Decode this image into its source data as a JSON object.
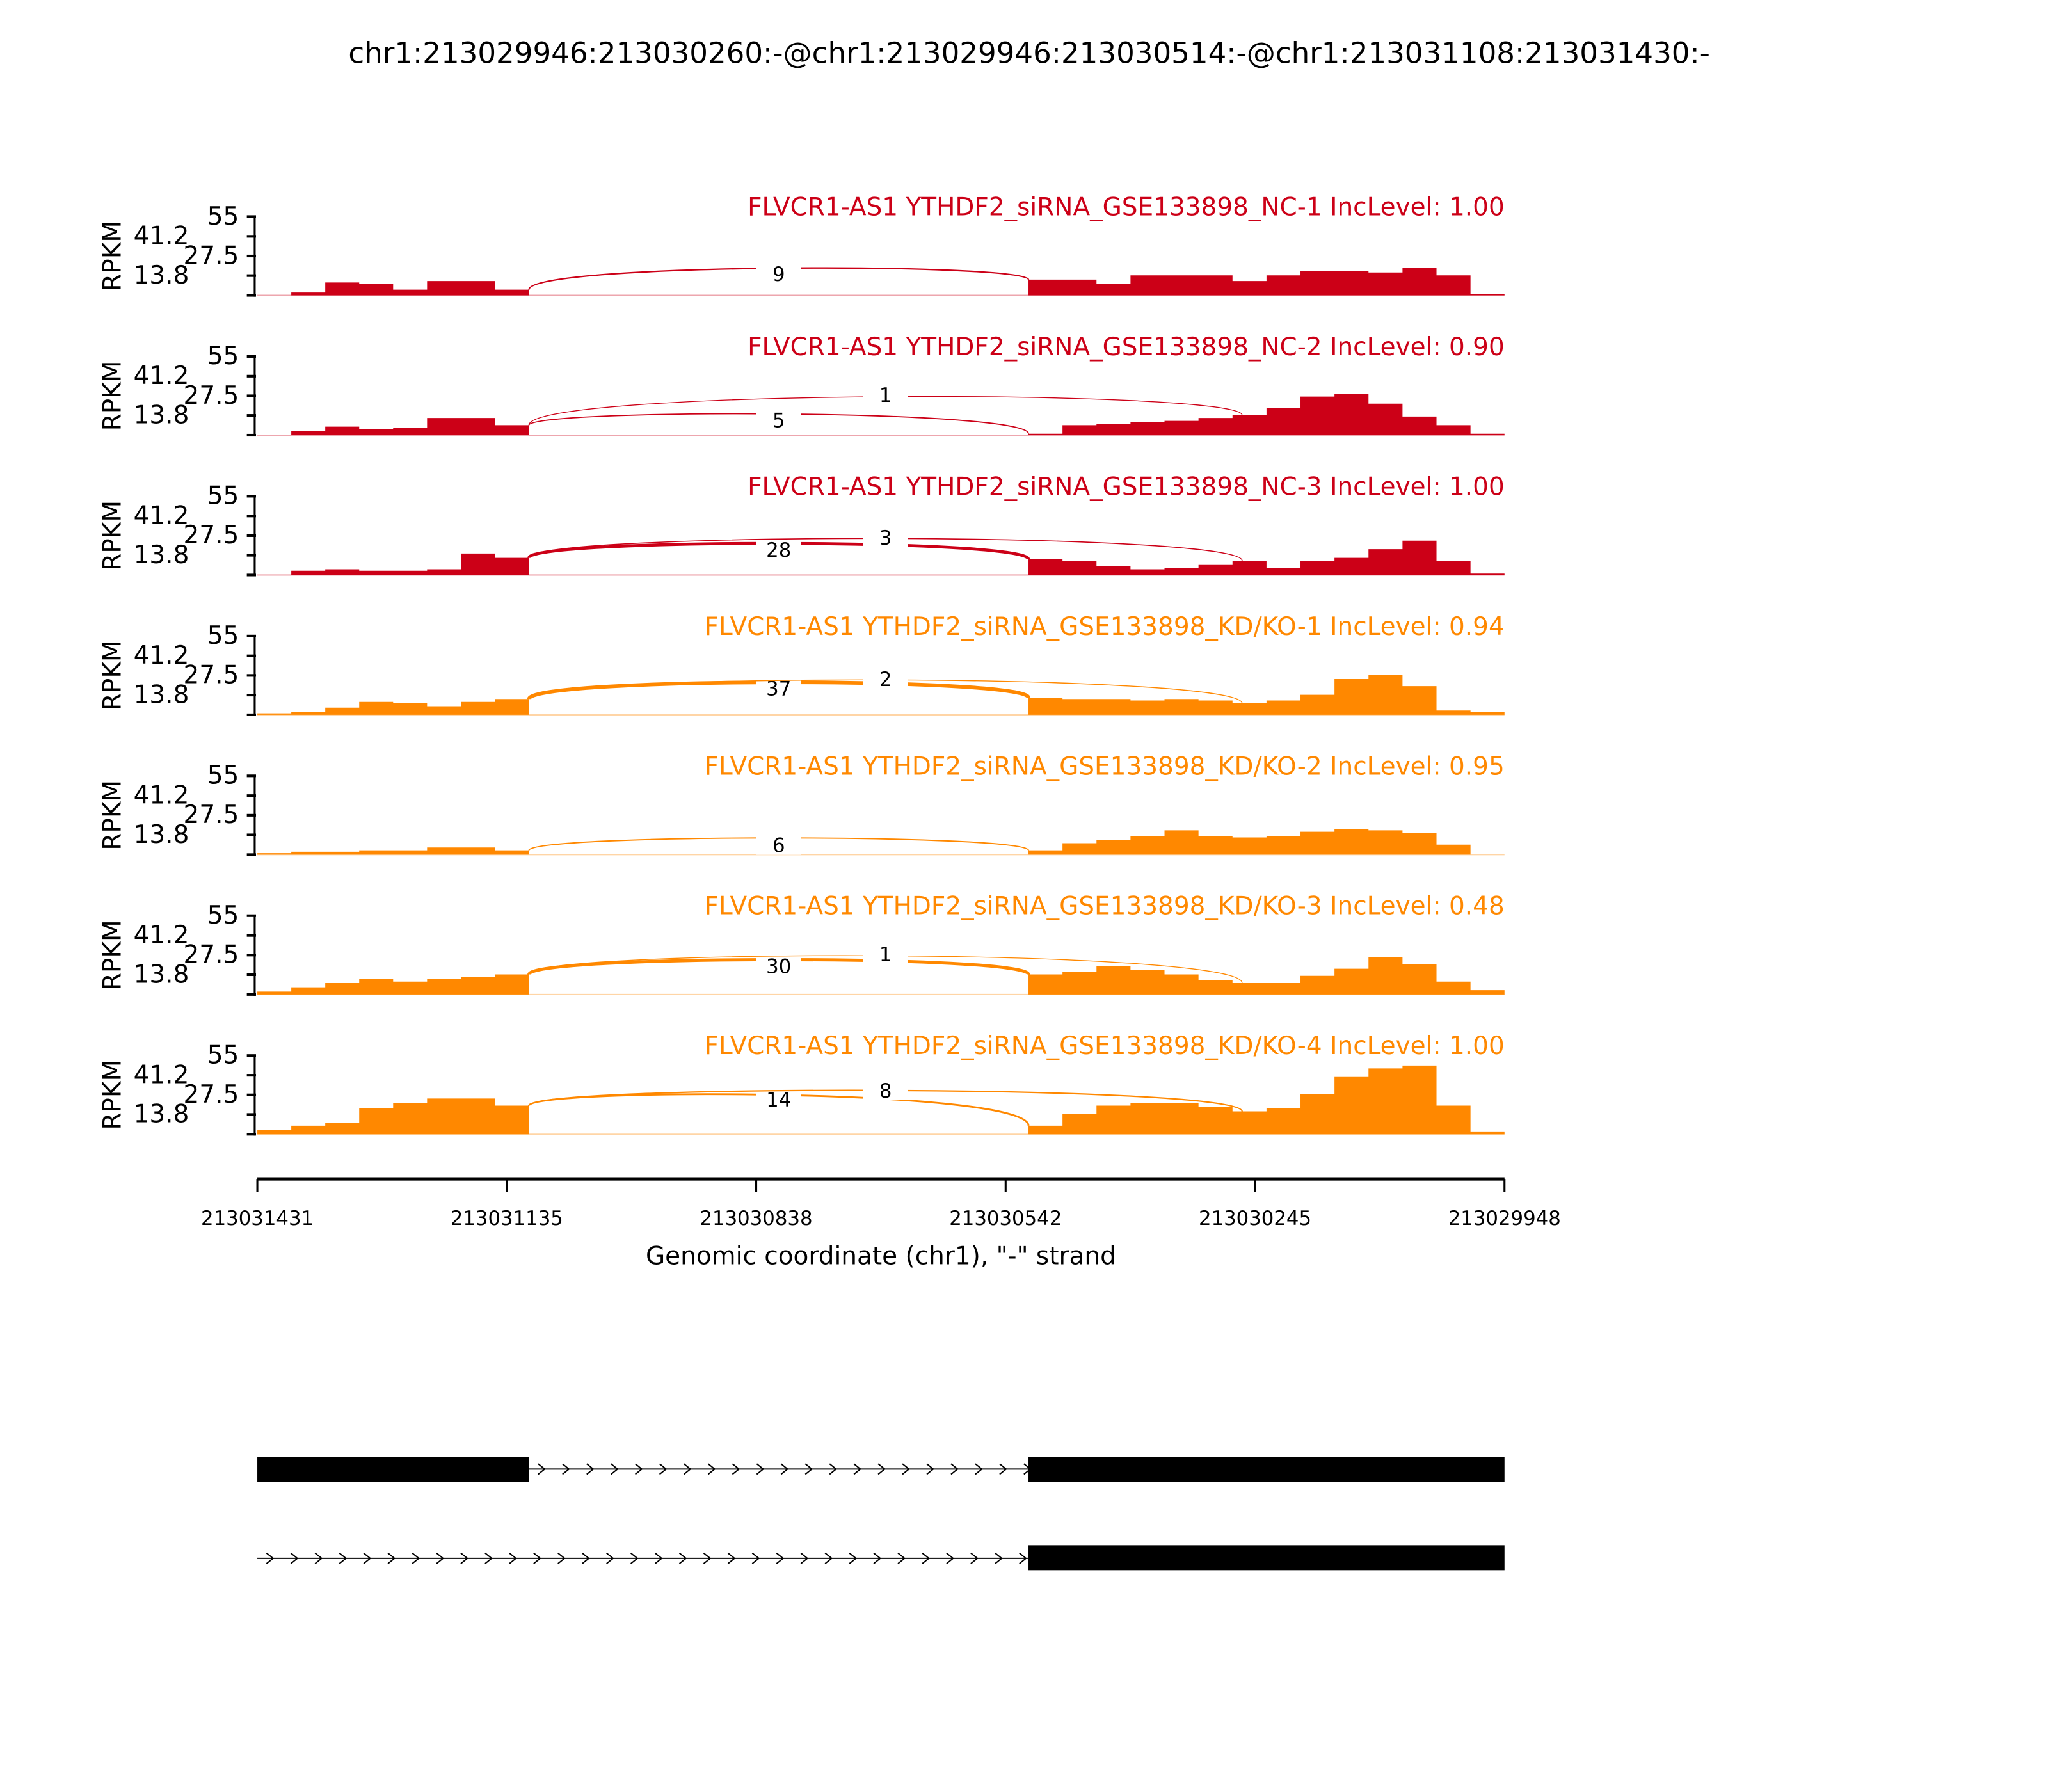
{
  "chart_data": {
    "type": "area",
    "title": "chr1:213029946:213030260:-@chr1:213029946:213030514:-@chr1:213031108:213031430:-",
    "xlabel": "Genomic coordinate (chr1), \"-\" strand",
    "ylabel": "RPKM",
    "xlim": [
      213031431,
      213029948
    ],
    "x_ticks": [
      "213031431",
      "213031135",
      "213030838",
      "213030542",
      "213030245",
      "213029948"
    ],
    "ylim": [
      0,
      55
    ],
    "y_ticks": [
      "13.8",
      "27.5",
      "41.2",
      "55"
    ],
    "exons": [
      [
        213031430,
        213031108
      ],
      [
        213030514,
        213030260
      ],
      [
        213030260,
        213029946
      ]
    ],
    "colors": {
      "NC": "#CC0017",
      "KD": "#FF8800"
    },
    "tracks": [
      {
        "label": "FLVCR1-AS1 YTHDF2_siRNA_GSE133898_NC-1 IncLevel: 1.00",
        "group": "NC",
        "exon1_cov": [
          0,
          2,
          9,
          8,
          4,
          10,
          10,
          4
        ],
        "exon23_cov": [
          11,
          11,
          8,
          14,
          14,
          14,
          10,
          14,
          17,
          17,
          16,
          19,
          14,
          1
        ],
        "junctions": [
          {
            "label": "9",
            "count": 9,
            "type": "inclusion"
          }
        ]
      },
      {
        "label": "FLVCR1-AS1 YTHDF2_siRNA_GSE133898_NC-2 IncLevel: 0.90",
        "group": "NC",
        "exon1_cov": [
          0,
          3,
          6,
          4,
          5,
          12,
          12,
          7
        ],
        "exon23_cov": [
          1,
          7,
          8,
          9,
          10,
          12,
          14,
          19,
          27,
          29,
          22,
          13,
          7,
          1
        ],
        "junctions": [
          {
            "label": "5",
            "count": 5,
            "type": "inclusion"
          },
          {
            "label": "1",
            "count": 1,
            "type": "skipping"
          }
        ]
      },
      {
        "label": "FLVCR1-AS1 YTHDF2_siRNA_GSE133898_NC-3 IncLevel: 1.00",
        "group": "NC",
        "exon1_cov": [
          0,
          3,
          4,
          3,
          3,
          4,
          15,
          12
        ],
        "exon23_cov": [
          11,
          10,
          6,
          4,
          5,
          7,
          10,
          5,
          10,
          12,
          18,
          24,
          10,
          1
        ],
        "junctions": [
          {
            "label": "28",
            "count": 28,
            "type": "inclusion"
          },
          {
            "label": "3",
            "count": 3,
            "type": "skipping"
          }
        ]
      },
      {
        "label": "FLVCR1-AS1 YTHDF2_siRNA_GSE133898_KD/KO-1 IncLevel: 0.94",
        "group": "KD",
        "exon1_cov": [
          1,
          2,
          5,
          9,
          8,
          6,
          9,
          11
        ],
        "exon23_cov": [
          12,
          11,
          11,
          10,
          11,
          10,
          8,
          10,
          14,
          25,
          28,
          20,
          3,
          2
        ],
        "junctions": [
          {
            "label": "37",
            "count": 37,
            "type": "inclusion"
          },
          {
            "label": "2",
            "count": 2,
            "type": "skipping"
          }
        ]
      },
      {
        "label": "FLVCR1-AS1 YTHDF2_siRNA_GSE133898_KD/KO-2 IncLevel: 0.95",
        "group": "KD",
        "exon1_cov": [
          1,
          2,
          2,
          3,
          3,
          5,
          5,
          3
        ],
        "exon23_cov": [
          3,
          8,
          10,
          13,
          17,
          13,
          12,
          13,
          16,
          18,
          17,
          15,
          7,
          0
        ],
        "junctions": [
          {
            "label": "6",
            "count": 6,
            "type": "inclusion"
          }
        ]
      },
      {
        "label": "FLVCR1-AS1 YTHDF2_siRNA_GSE133898_KD/KO-3 IncLevel: 0.48",
        "group": "KD",
        "exon1_cov": [
          2,
          5,
          8,
          11,
          9,
          11,
          12,
          14
        ],
        "exon23_cov": [
          14,
          16,
          20,
          17,
          14,
          10,
          8,
          8,
          13,
          18,
          26,
          21,
          9,
          3
        ],
        "junctions": [
          {
            "label": "30",
            "count": 30,
            "type": "inclusion"
          },
          {
            "label": "1",
            "count": 1,
            "type": "skipping"
          }
        ]
      },
      {
        "label": "FLVCR1-AS1 YTHDF2_siRNA_GSE133898_KD/KO-4 IncLevel: 1.00",
        "group": "KD",
        "exon1_cov": [
          3,
          6,
          8,
          18,
          22,
          25,
          25,
          20
        ],
        "exon23_cov": [
          6,
          14,
          20,
          22,
          22,
          19,
          16,
          18,
          28,
          40,
          46,
          48,
          20,
          2
        ],
        "junctions": [
          {
            "label": "14",
            "count": 14,
            "type": "inclusion"
          },
          {
            "label": "8",
            "count": 8,
            "type": "skipping"
          }
        ]
      }
    ]
  }
}
